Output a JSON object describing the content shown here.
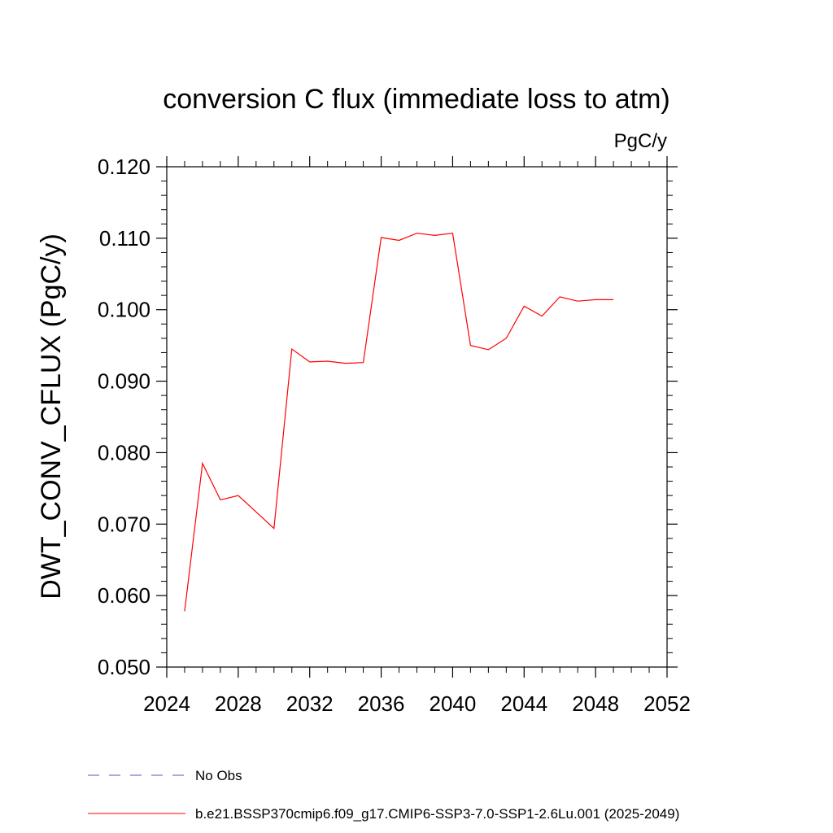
{
  "chart_data": {
    "type": "line",
    "title": "conversion C flux (immediate loss to atm)",
    "units": "PgC/y",
    "ylabel": "DWT_CONV_CFLUX  (PgC/y)",
    "xlabel": "",
    "xlim": [
      2024,
      2052
    ],
    "ylim": [
      0.05,
      0.12
    ],
    "x_ticks": [
      2024,
      2028,
      2032,
      2036,
      2040,
      2044,
      2048,
      2052
    ],
    "x_tick_labels": [
      "2024",
      "2028",
      "2032",
      "2036",
      "2040",
      "2044",
      "2048",
      "2052"
    ],
    "y_ticks": [
      0.05,
      0.06,
      0.07,
      0.08,
      0.09,
      0.1,
      0.11,
      0.12
    ],
    "y_tick_labels": [
      "0.050",
      "0.060",
      "0.070",
      "0.080",
      "0.090",
      "0.100",
      "0.110",
      "0.120"
    ],
    "grid": false,
    "legend_placement": "bottom",
    "series": [
      {
        "name": "b.e21.BSSP370cmip6.f09_g17.CMIP6-SSP3-7.0-SSP1-2.6Lu.001 (2025-2049)",
        "color": "#ff0000",
        "style": "solid",
        "x": [
          2025,
          2026,
          2027,
          2028,
          2029,
          2030,
          2031,
          2032,
          2033,
          2034,
          2035,
          2036,
          2037,
          2038,
          2039,
          2040,
          2041,
          2042,
          2043,
          2044,
          2045,
          2046,
          2047,
          2048,
          2049
        ],
        "values": [
          0.0578,
          0.0785,
          0.0734,
          0.074,
          0.0717,
          0.0694,
          0.0945,
          0.0927,
          0.0928,
          0.0925,
          0.0926,
          0.1101,
          0.1097,
          0.1107,
          0.1104,
          0.1107,
          0.095,
          0.0944,
          0.096,
          0.1005,
          0.0991,
          0.1018,
          0.1012,
          0.1014,
          0.1014
        ]
      }
    ],
    "legend": [
      {
        "label": "No Obs",
        "color": "#5a4fcf",
        "style": "dashed"
      },
      {
        "label": "b.e21.BSSP370cmip6.f09_g17.CMIP6-SSP3-7.0-SSP1-2.6Lu.001 (2025-2049)",
        "color": "#ff0000",
        "style": "solid"
      }
    ]
  }
}
